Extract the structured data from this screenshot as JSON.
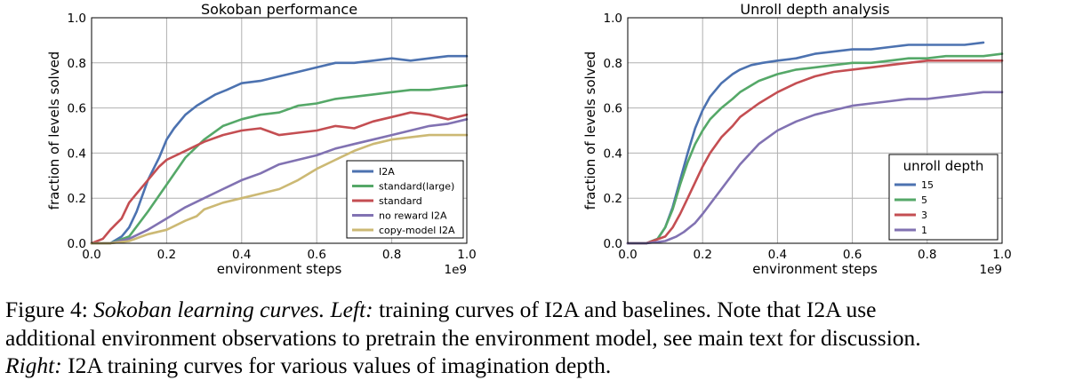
{
  "chart_data": [
    {
      "type": "line",
      "title": "Sokoban performance",
      "xlabel": "environment steps",
      "ylabel": "fraction of levels solved",
      "x_multiplier_label": "1e9",
      "xlim": [
        0.0,
        1.0
      ],
      "ylim": [
        0.0,
        1.0
      ],
      "xticks": [
        "0.0",
        "0.2",
        "0.4",
        "0.6",
        "0.8",
        "1.0"
      ],
      "yticks": [
        "0.0",
        "0.2",
        "0.4",
        "0.6",
        "0.8",
        "1.0"
      ],
      "grid": true,
      "legend_position": "lower right",
      "legend_title": "",
      "series": [
        {
          "name": "I2A",
          "color": "#4c72b0",
          "x": [
            0.0,
            0.05,
            0.08,
            0.1,
            0.12,
            0.15,
            0.18,
            0.2,
            0.22,
            0.25,
            0.28,
            0.3,
            0.33,
            0.36,
            0.4,
            0.45,
            0.5,
            0.55,
            0.6,
            0.65,
            0.7,
            0.75,
            0.8,
            0.85,
            0.9,
            0.95,
            1.0
          ],
          "y": [
            0.0,
            0.0,
            0.03,
            0.07,
            0.14,
            0.28,
            0.38,
            0.46,
            0.51,
            0.57,
            0.61,
            0.63,
            0.66,
            0.68,
            0.71,
            0.72,
            0.74,
            0.76,
            0.78,
            0.8,
            0.8,
            0.81,
            0.82,
            0.81,
            0.82,
            0.83,
            0.83
          ]
        },
        {
          "name": "standard(large)",
          "color": "#55a868",
          "x": [
            0.0,
            0.05,
            0.1,
            0.15,
            0.2,
            0.25,
            0.3,
            0.35,
            0.4,
            0.45,
            0.5,
            0.55,
            0.6,
            0.65,
            0.7,
            0.75,
            0.8,
            0.85,
            0.9,
            0.95,
            1.0
          ],
          "y": [
            0.0,
            0.0,
            0.03,
            0.14,
            0.26,
            0.38,
            0.46,
            0.52,
            0.55,
            0.57,
            0.58,
            0.61,
            0.62,
            0.64,
            0.65,
            0.66,
            0.67,
            0.68,
            0.68,
            0.69,
            0.7
          ]
        },
        {
          "name": "standard",
          "color": "#c44e52",
          "x": [
            0.0,
            0.03,
            0.05,
            0.08,
            0.1,
            0.12,
            0.15,
            0.18,
            0.2,
            0.25,
            0.3,
            0.35,
            0.4,
            0.45,
            0.5,
            0.55,
            0.6,
            0.65,
            0.7,
            0.75,
            0.8,
            0.85,
            0.9,
            0.95,
            1.0
          ],
          "y": [
            0.0,
            0.02,
            0.06,
            0.11,
            0.18,
            0.22,
            0.28,
            0.34,
            0.37,
            0.41,
            0.45,
            0.48,
            0.5,
            0.51,
            0.48,
            0.49,
            0.5,
            0.52,
            0.51,
            0.54,
            0.56,
            0.58,
            0.57,
            0.55,
            0.57
          ]
        },
        {
          "name": "no reward I2A",
          "color": "#8172b2",
          "x": [
            0.0,
            0.05,
            0.1,
            0.15,
            0.2,
            0.25,
            0.3,
            0.35,
            0.4,
            0.45,
            0.5,
            0.55,
            0.6,
            0.65,
            0.7,
            0.75,
            0.8,
            0.85,
            0.9,
            0.95,
            1.0
          ],
          "y": [
            0.0,
            0.0,
            0.02,
            0.06,
            0.11,
            0.16,
            0.2,
            0.24,
            0.28,
            0.31,
            0.35,
            0.37,
            0.39,
            0.42,
            0.44,
            0.46,
            0.48,
            0.5,
            0.52,
            0.53,
            0.55
          ]
        },
        {
          "name": "copy-model I2A",
          "color": "#ccb974",
          "x": [
            0.0,
            0.05,
            0.1,
            0.15,
            0.2,
            0.25,
            0.28,
            0.3,
            0.35,
            0.4,
            0.45,
            0.5,
            0.55,
            0.6,
            0.65,
            0.7,
            0.75,
            0.8,
            0.85,
            0.9,
            0.95,
            1.0
          ],
          "y": [
            0.0,
            0.0,
            0.01,
            0.04,
            0.06,
            0.1,
            0.12,
            0.15,
            0.18,
            0.2,
            0.22,
            0.24,
            0.28,
            0.33,
            0.37,
            0.41,
            0.44,
            0.46,
            0.47,
            0.48,
            0.48,
            0.48
          ]
        }
      ]
    },
    {
      "type": "line",
      "title": "Unroll depth analysis",
      "xlabel": "environment steps",
      "ylabel": "fraction of levels solved",
      "x_multiplier_label": "1e9",
      "xlim": [
        0.0,
        1.0
      ],
      "ylim": [
        0.0,
        1.0
      ],
      "xticks": [
        "0.0",
        "0.2",
        "0.4",
        "0.6",
        "0.8",
        "1.0"
      ],
      "yticks": [
        "0.0",
        "0.2",
        "0.4",
        "0.6",
        "0.8",
        "1.0"
      ],
      "grid": true,
      "legend_position": "lower right",
      "legend_title": "unroll depth",
      "series": [
        {
          "name": "15",
          "color": "#4c72b0",
          "x": [
            0.0,
            0.05,
            0.08,
            0.1,
            0.12,
            0.14,
            0.16,
            0.18,
            0.2,
            0.22,
            0.25,
            0.28,
            0.3,
            0.33,
            0.36,
            0.4,
            0.45,
            0.5,
            0.55,
            0.6,
            0.65,
            0.7,
            0.75,
            0.8,
            0.85,
            0.9,
            0.95
          ],
          "y": [
            0.0,
            0.0,
            0.02,
            0.07,
            0.16,
            0.28,
            0.4,
            0.51,
            0.59,
            0.65,
            0.71,
            0.75,
            0.77,
            0.79,
            0.8,
            0.81,
            0.82,
            0.84,
            0.85,
            0.86,
            0.86,
            0.87,
            0.88,
            0.88,
            0.88,
            0.88,
            0.89
          ]
        },
        {
          "name": "5",
          "color": "#55a868",
          "x": [
            0.0,
            0.05,
            0.08,
            0.1,
            0.12,
            0.14,
            0.16,
            0.18,
            0.2,
            0.22,
            0.25,
            0.28,
            0.3,
            0.35,
            0.4,
            0.45,
            0.5,
            0.55,
            0.6,
            0.65,
            0.7,
            0.75,
            0.8,
            0.85,
            0.9,
            0.95,
            1.0
          ],
          "y": [
            0.0,
            0.0,
            0.02,
            0.07,
            0.15,
            0.26,
            0.36,
            0.44,
            0.5,
            0.55,
            0.6,
            0.64,
            0.67,
            0.72,
            0.75,
            0.77,
            0.78,
            0.79,
            0.8,
            0.8,
            0.81,
            0.82,
            0.82,
            0.83,
            0.83,
            0.83,
            0.84
          ]
        },
        {
          "name": "3",
          "color": "#c44e52",
          "x": [
            0.0,
            0.05,
            0.1,
            0.12,
            0.14,
            0.16,
            0.18,
            0.2,
            0.22,
            0.25,
            0.28,
            0.3,
            0.35,
            0.4,
            0.45,
            0.5,
            0.55,
            0.6,
            0.65,
            0.7,
            0.75,
            0.8,
            0.85,
            0.9,
            0.95,
            1.0
          ],
          "y": [
            0.0,
            0.0,
            0.03,
            0.07,
            0.13,
            0.2,
            0.27,
            0.34,
            0.4,
            0.47,
            0.52,
            0.56,
            0.62,
            0.67,
            0.71,
            0.74,
            0.76,
            0.77,
            0.78,
            0.79,
            0.8,
            0.81,
            0.81,
            0.81,
            0.81,
            0.81
          ]
        },
        {
          "name": "1",
          "color": "#8172b2",
          "x": [
            0.0,
            0.05,
            0.1,
            0.13,
            0.15,
            0.18,
            0.2,
            0.25,
            0.3,
            0.35,
            0.4,
            0.45,
            0.5,
            0.55,
            0.6,
            0.65,
            0.7,
            0.75,
            0.8,
            0.85,
            0.9,
            0.95,
            1.0
          ],
          "y": [
            0.0,
            0.0,
            0.01,
            0.03,
            0.05,
            0.09,
            0.13,
            0.24,
            0.35,
            0.44,
            0.5,
            0.54,
            0.57,
            0.59,
            0.61,
            0.62,
            0.63,
            0.64,
            0.64,
            0.65,
            0.66,
            0.67,
            0.67
          ]
        }
      ]
    }
  ],
  "caption": {
    "line1_plain_a": "Figure 4: ",
    "line1_italic": "Sokoban learning curves. Left:",
    "line1_plain_b": " training curves of I2A and baselines. Note that I2A use",
    "line2": "additional environment observations to pretrain the environment model, see main text for discussion.",
    "line3_italic": "Right:",
    "line3_plain": " I2A training curves for various values of imagination depth."
  }
}
